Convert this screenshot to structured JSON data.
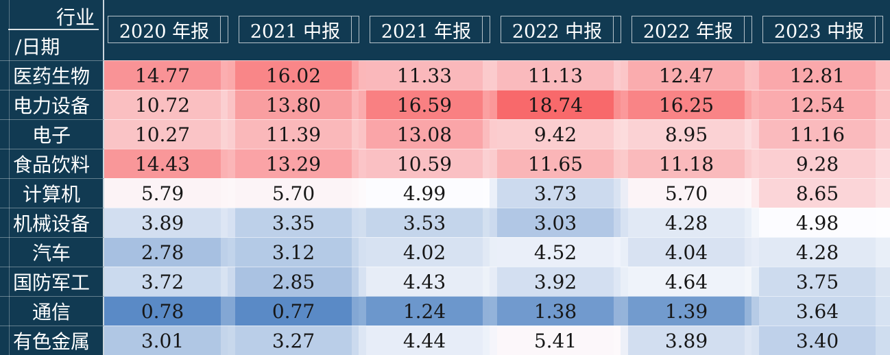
{
  "table": {
    "corner_top": "行业",
    "corner_bottom": "/日期",
    "columns": [
      "2020 年报",
      "2021 中报",
      "2021 年报",
      "2022 中报",
      "2022 年报",
      "2023 中报"
    ],
    "rows": [
      {
        "label": "医药生物",
        "display": [
          "14.77",
          "16.02",
          "11.33",
          "11.13",
          "12.47",
          "12.81"
        ]
      },
      {
        "label": "电力设备",
        "display": [
          "10.72",
          "13.80",
          "16.59",
          "18.74",
          "16.25",
          "12.54"
        ]
      },
      {
        "label": "电子",
        "display": [
          "10.27",
          "11.39",
          "13.08",
          "9.42",
          "8.95",
          "11.16"
        ]
      },
      {
        "label": "食品饮料",
        "display": [
          "14.43",
          "13.29",
          "10.59",
          "11.65",
          "11.18",
          "9.28"
        ]
      },
      {
        "label": "计算机",
        "display": [
          "5.79",
          "5.70",
          "4.99",
          "3.73",
          "5.70",
          "8.65"
        ]
      },
      {
        "label": "机械设备",
        "display": [
          "3.89",
          "3.35",
          "3.53",
          "3.03",
          "4.28",
          "4.98"
        ]
      },
      {
        "label": "汽车",
        "display": [
          "2.78",
          "3.12",
          "4.02",
          "4.52",
          "4.04",
          "4.28"
        ]
      },
      {
        "label": "国防军工",
        "display": [
          "3.72",
          "2.85",
          "4.43",
          "3.92",
          "4.64",
          "3.75"
        ]
      },
      {
        "label": "通信",
        "display": [
          "0.78",
          "0.77",
          "1.24",
          "1.38",
          "1.39",
          "3.64"
        ]
      },
      {
        "label": "有色金属",
        "display": [
          "3.01",
          "3.27",
          "4.44",
          "5.41",
          "3.89",
          "3.40"
        ]
      }
    ]
  },
  "heat_scale": {
    "min": 0.77,
    "mid": 4.985,
    "max": 18.74,
    "min_color": "#5A8AC6",
    "mid_color": "#FCFCFF",
    "max_color": "#F8696B"
  },
  "colors": {
    "background": "#113A52",
    "header_text": "#FFFFFF",
    "value_text": "#161616"
  },
  "chart_data": {
    "type": "heatmap",
    "title": "",
    "x_labels": [
      "2020 年报",
      "2021 中报",
      "2021 年报",
      "2022 中报",
      "2022 年报",
      "2023 中报"
    ],
    "y_labels": [
      "医药生物",
      "电力设备",
      "电子",
      "食品饮料",
      "计算机",
      "机械设备",
      "汽车",
      "国防军工",
      "通信",
      "有色金属"
    ],
    "values": [
      [
        14.77,
        16.02,
        11.33,
        11.13,
        12.47,
        12.81
      ],
      [
        10.72,
        13.8,
        16.59,
        18.74,
        16.25,
        12.54
      ],
      [
        10.27,
        11.39,
        13.08,
        9.42,
        8.95,
        11.16
      ],
      [
        14.43,
        13.29,
        10.59,
        11.65,
        11.18,
        9.28
      ],
      [
        5.79,
        5.7,
        4.99,
        3.73,
        5.7,
        8.65
      ],
      [
        3.89,
        3.35,
        3.53,
        3.03,
        4.28,
        4.98
      ],
      [
        2.78,
        3.12,
        4.02,
        4.52,
        4.04,
        4.28
      ],
      [
        3.72,
        2.85,
        4.43,
        3.92,
        4.64,
        3.75
      ],
      [
        0.78,
        0.77,
        1.24,
        1.38,
        1.39,
        3.64
      ],
      [
        3.01,
        3.27,
        4.44,
        5.41,
        3.89,
        3.4
      ]
    ],
    "color_scale": {
      "low": "#5A8AC6",
      "mid": "#FCFCFF",
      "high": "#F8696B",
      "domain": [
        0.77,
        4.985,
        18.74
      ]
    },
    "legend": "none",
    "grid": "off"
  }
}
